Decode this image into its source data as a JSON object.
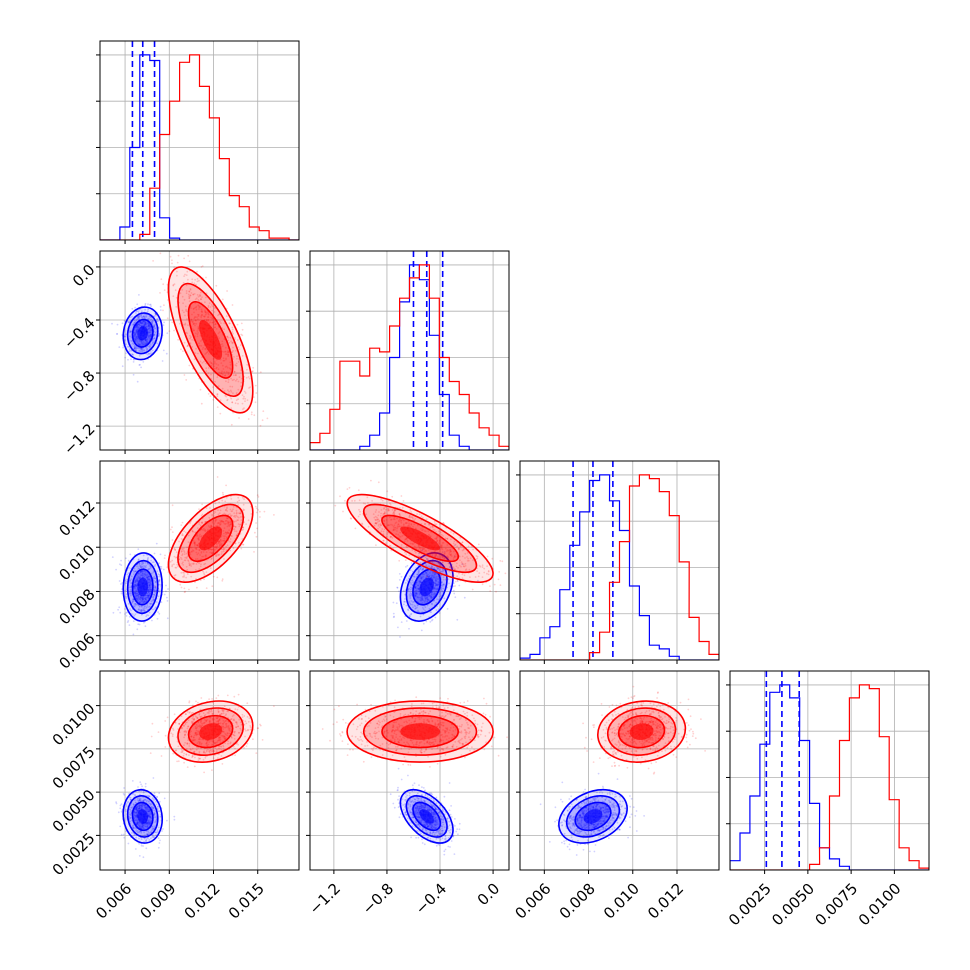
{
  "chart_data": {
    "type": "corner",
    "description_of_layout": "lower-triangle corner plot of 4 parameters; diagonal panels are 1D histograms, off-diagonal panels are 2D density contours with scatter points",
    "grid": true,
    "colors": {
      "blue": "#0000ff",
      "red": "#ff0000"
    },
    "series": [
      {
        "color": "blue",
        "means": [
          0.0072,
          -0.5,
          0.0082,
          0.0036
        ],
        "sds": [
          0.0006,
          0.09,
          0.0007,
          0.0007
        ],
        "corr": {
          "0-1": 0.1,
          "0-2": 0.05,
          "0-3": -0.1,
          "1-2": 0.3,
          "1-3": -0.5,
          "2-3": 0.3
        },
        "quantiles": [
          [
            0.0065,
            0.0072,
            0.008
          ],
          [
            -0.6,
            -0.5,
            -0.38
          ],
          [
            0.0073,
            0.0082,
            0.0091
          ],
          [
            0.0026,
            0.0035,
            0.0045
          ]
        ],
        "hist": [
          [
            0,
            0,
            0.07,
            0.5,
            1.0,
            0.97,
            0.12,
            0.01,
            0,
            0,
            0,
            0,
            0,
            0,
            0,
            0,
            0,
            0,
            0,
            0
          ],
          [
            0,
            0,
            0,
            0,
            0,
            0.02,
            0.08,
            0.2,
            0.5,
            0.8,
            1.0,
            0.92,
            0.62,
            0.3,
            0.08,
            0.02,
            0,
            0,
            0,
            0
          ],
          [
            0.01,
            0.03,
            0.12,
            0.18,
            0.38,
            0.62,
            0.8,
            0.97,
            1.0,
            0.86,
            0.7,
            0.4,
            0.24,
            0.08,
            0.06,
            0.02,
            0,
            0,
            0,
            0
          ],
          [
            0.05,
            0.2,
            0.4,
            0.68,
            0.96,
            1.0,
            0.93,
            0.7,
            0.36,
            0.12,
            0.06,
            0.02,
            0,
            0,
            0,
            0,
            0,
            0,
            0,
            0
          ]
        ]
      },
      {
        "color": "red",
        "means": [
          0.0118,
          -0.55,
          0.0104,
          0.0085
        ],
        "sds": [
          0.0013,
          0.25,
          0.0009,
          0.0008
        ],
        "corr": {
          "0-1": -0.7,
          "0-2": 0.6,
          "0-3": 0.2,
          "1-2": -0.8,
          "1-3": 0.0,
          "2-3": 0.1
        },
        "hist": [
          [
            0,
            0,
            0,
            0,
            0.03,
            0.28,
            0.57,
            0.75,
            0.96,
            1.0,
            0.83,
            0.66,
            0.44,
            0.24,
            0.18,
            0.07,
            0.05,
            0.01,
            0.01,
            0
          ],
          [
            0.04,
            0.09,
            0.22,
            0.48,
            0.48,
            0.4,
            0.55,
            0.53,
            0.67,
            0.82,
            0.93,
            1.0,
            0.82,
            0.5,
            0.37,
            0.3,
            0.2,
            0.12,
            0.08,
            0.02
          ],
          [
            0,
            0,
            0,
            0,
            0,
            0,
            0,
            0.04,
            0.15,
            0.42,
            0.64,
            0.94,
            1.0,
            0.98,
            0.91,
            0.78,
            0.53,
            0.23,
            0.1,
            0.03
          ],
          [
            0,
            0,
            0,
            0,
            0,
            0,
            0,
            0,
            0.03,
            0.12,
            0.4,
            0.7,
            0.93,
            1.0,
            0.98,
            0.72,
            0.38,
            0.12,
            0.05,
            0.01
          ]
        ]
      }
    ],
    "axes": [
      {
        "range": [
          0.0043,
          0.0178
        ],
        "ticks": [
          0.006,
          0.009,
          0.012,
          0.015
        ],
        "tick_labels": [
          "0.006",
          "0.009",
          "0.012",
          "0.015"
        ]
      },
      {
        "range": [
          -1.38,
          0.12
        ],
        "ticks": [
          -1.2,
          -0.8,
          -0.4,
          0.0
        ],
        "tick_labels": [
          "−1.2",
          "−0.8",
          "−0.4",
          "0.0"
        ]
      },
      {
        "range": [
          0.0049,
          0.0139
        ],
        "ticks": [
          0.006,
          0.008,
          0.01,
          0.012
        ],
        "tick_labels": [
          "0.006",
          "0.008",
          "0.010",
          "0.012"
        ]
      },
      {
        "range": [
          0.0005,
          0.012
        ],
        "ticks": [
          0.0025,
          0.005,
          0.0075,
          0.01
        ],
        "tick_labels": [
          "0.0025",
          "0.0050",
          "0.0075",
          "0.0100"
        ]
      }
    ]
  }
}
